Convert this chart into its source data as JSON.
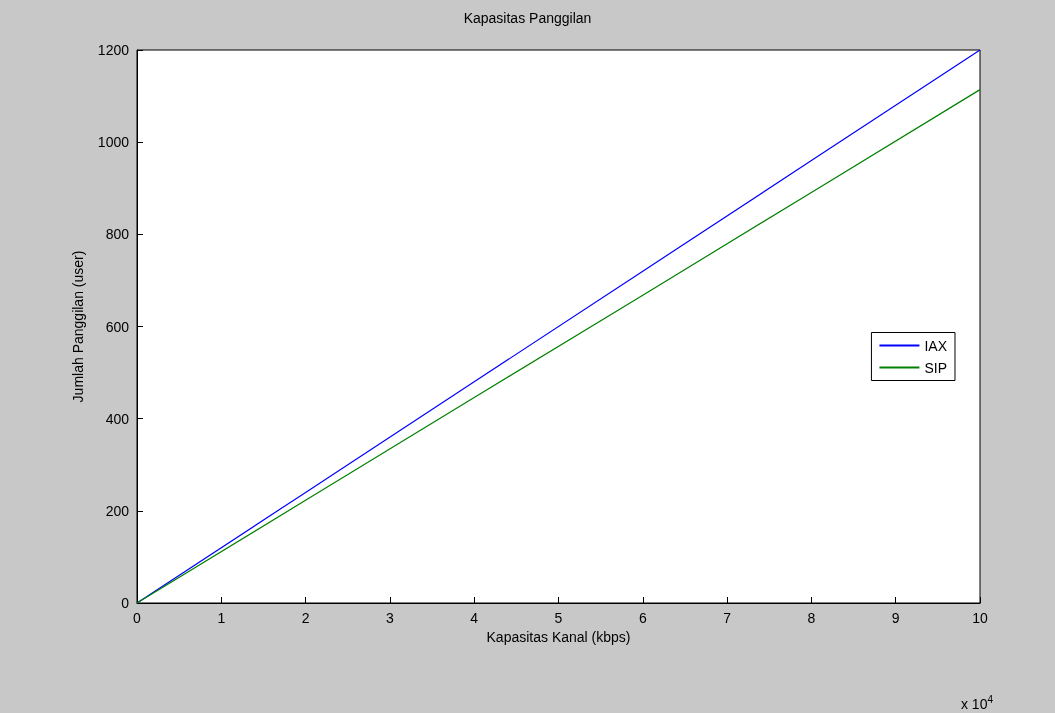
{
  "chart_data": {
    "type": "line",
    "title": "Kapasitas Panggilan",
    "xlabel": "Kapasitas Kanal (kbps)",
    "ylabel": "Jumlah Panggilan (user)",
    "x": [
      0,
      2,
      4,
      6,
      8,
      10
    ],
    "series": [
      {
        "name": "IAX",
        "color": "#0000ff",
        "values": [
          0,
          240,
          480,
          720,
          960,
          1200
        ]
      },
      {
        "name": "SIP",
        "color": "#008000",
        "values": [
          0,
          223,
          446,
          668,
          891,
          1114
        ]
      }
    ],
    "xlim": [
      0,
      10
    ],
    "xticks": [
      0,
      1,
      2,
      3,
      4,
      5,
      6,
      7,
      8,
      9,
      10
    ],
    "ylim": [
      0,
      1200
    ],
    "yticks": [
      0,
      200,
      400,
      600,
      800,
      1000,
      1200
    ],
    "annotations": [
      "x 10$^{4}$"
    ],
    "grid": false,
    "legend": "right",
    "marker": "none",
    "line_style": "solid"
  }
}
